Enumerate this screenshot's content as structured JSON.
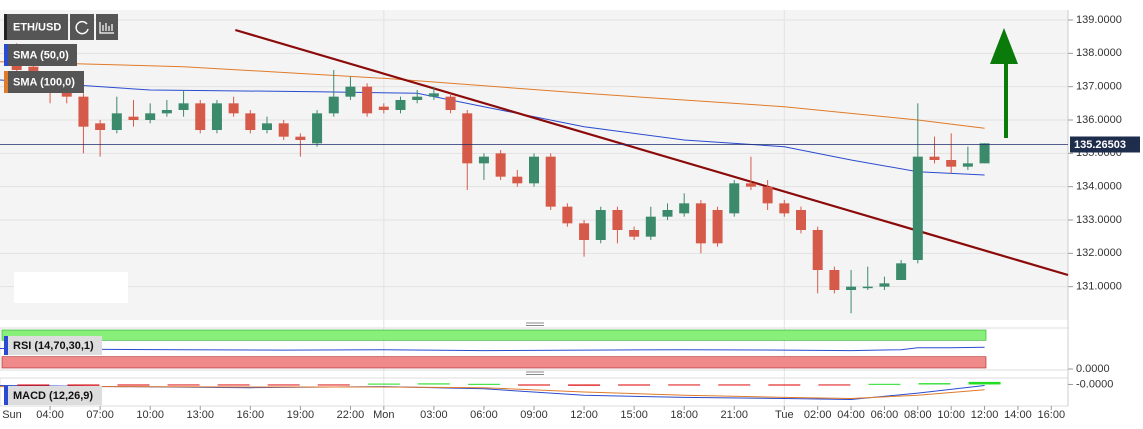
{
  "chart_data": [
    {
      "type": "candlestick",
      "title": "ETH/USD",
      "x": [
        2,
        3,
        4,
        5,
        6,
        7,
        8,
        9,
        10,
        11,
        12,
        13,
        14,
        15,
        16,
        17,
        18,
        19,
        20,
        21,
        22,
        23,
        24,
        25,
        26,
        27,
        28,
        29,
        30,
        31,
        32,
        33,
        34,
        35,
        36,
        37,
        38,
        39,
        40,
        41,
        42,
        43,
        44,
        45,
        46,
        47,
        48,
        49,
        50,
        51,
        52,
        53,
        54,
        55,
        56,
        57,
        58,
        59,
        60
      ],
      "open": [
        137.9,
        137.6,
        137.2,
        137.0,
        136.7,
        135.9,
        135.7,
        136.1,
        136.0,
        136.2,
        136.3,
        136.5,
        135.7,
        136.5,
        136.2,
        135.7,
        135.9,
        135.5,
        135.3,
        136.2,
        136.7,
        137.0,
        136.4,
        136.3,
        136.6,
        136.7,
        136.7,
        136.2,
        134.7,
        135.0,
        134.3,
        134.1,
        134.9,
        133.4,
        132.9,
        132.4,
        133.3,
        132.7,
        132.5,
        133.1,
        133.2,
        133.5,
        133.3,
        133.2,
        134.1,
        134.0,
        133.5,
        133.3,
        132.7,
        131.5,
        130.9,
        131.0,
        131.0,
        131.2,
        131.8,
        134.9,
        134.8,
        134.6,
        134.7
      ],
      "high": [
        138.3,
        137.8,
        137.4,
        137.2,
        136.8,
        136.0,
        136.7,
        136.6,
        136.5,
        136.6,
        136.9,
        136.6,
        136.6,
        136.7,
        136.3,
        136.1,
        136.0,
        135.6,
        136.3,
        137.5,
        137.3,
        137.1,
        136.5,
        136.7,
        136.9,
        137.0,
        136.8,
        136.3,
        135.0,
        135.1,
        134.5,
        135.0,
        135.0,
        133.5,
        133.0,
        133.4,
        133.4,
        132.8,
        133.4,
        133.5,
        133.8,
        133.6,
        133.4,
        134.2,
        134.9,
        134.2,
        133.6,
        133.4,
        132.8,
        131.6,
        131.5,
        131.6,
        131.3,
        131.8,
        136.5,
        135.5,
        135.6,
        135.2,
        135.3
      ],
      "low": [
        137.3,
        137.0,
        136.5,
        136.5,
        135.0,
        134.9,
        135.6,
        135.8,
        135.9,
        136.1,
        136.1,
        135.6,
        135.6,
        136.1,
        135.6,
        135.6,
        135.4,
        134.9,
        135.2,
        136.1,
        136.6,
        136.1,
        136.2,
        136.2,
        136.5,
        136.6,
        136.2,
        133.9,
        134.2,
        134.2,
        134.0,
        134.0,
        133.3,
        132.8,
        131.9,
        132.3,
        132.3,
        132.4,
        132.4,
        133.0,
        133.1,
        132.0,
        132.2,
        133.1,
        133.9,
        133.3,
        133.1,
        132.6,
        130.8,
        130.8,
        130.2,
        130.9,
        130.9,
        131.2,
        131.7,
        134.7,
        134.4,
        134.5,
        134.7
      ],
      "close": [
        137.5,
        137.2,
        136.9,
        136.7,
        135.8,
        135.7,
        136.2,
        136.0,
        136.2,
        136.3,
        136.5,
        135.7,
        136.5,
        136.2,
        135.7,
        135.9,
        135.5,
        135.4,
        136.2,
        136.7,
        137.0,
        136.2,
        136.3,
        136.6,
        136.7,
        136.8,
        136.3,
        134.7,
        134.9,
        134.3,
        134.1,
        134.9,
        133.4,
        132.9,
        132.4,
        133.3,
        132.7,
        132.5,
        133.1,
        133.3,
        133.5,
        132.3,
        132.3,
        134.1,
        134.0,
        133.5,
        133.2,
        132.7,
        131.5,
        130.9,
        131.0,
        131.0,
        131.1,
        131.7,
        134.9,
        134.8,
        134.6,
        134.7,
        135.3
      ],
      "up_color": "#3b8a6c",
      "down_color": "#d65a4a",
      "xlim": [
        1,
        65
      ],
      "ylim": [
        130,
        139.3
      ],
      "yticks": [
        {
          "value": 131,
          "label": "131.0000"
        },
        {
          "value": 132,
          "label": "132.0000"
        },
        {
          "value": 133,
          "label": "133.0000"
        },
        {
          "value": 134,
          "label": "134.0000"
        },
        {
          "value": 135,
          "label": "135.0000"
        },
        {
          "value": 136,
          "label": "136.0000"
        },
        {
          "value": 137,
          "label": "137.0000"
        },
        {
          "value": 138,
          "label": "138.0000"
        },
        {
          "value": 139,
          "label": "139.0000"
        }
      ],
      "xticks": [
        {
          "value": 0,
          "label": "Sun"
        },
        {
          "value": 4,
          "label": "04:00"
        },
        {
          "value": 7,
          "label": "07:00"
        },
        {
          "value": 10,
          "label": "10:00"
        },
        {
          "value": 13,
          "label": "13:00"
        },
        {
          "value": 16,
          "label": "16:00"
        },
        {
          "value": 19,
          "label": "19:00"
        },
        {
          "value": 22,
          "label": "22:00"
        },
        {
          "value": 24,
          "label": "Mon"
        },
        {
          "value": 27,
          "label": "03:00"
        },
        {
          "value": 30,
          "label": "06:00"
        },
        {
          "value": 33,
          "label": "09:00"
        },
        {
          "value": 36,
          "label": "12:00"
        },
        {
          "value": 39,
          "label": "15:00"
        },
        {
          "value": 42,
          "label": "18:00"
        },
        {
          "value": 45,
          "label": "21:00"
        },
        {
          "value": 48,
          "label": "Tue"
        },
        {
          "value": 50,
          "label": "02:00"
        },
        {
          "value": 52,
          "label": "04:00"
        },
        {
          "value": 54,
          "label": "06:00"
        },
        {
          "value": 56,
          "label": "08:00"
        },
        {
          "value": 58,
          "label": "10:00"
        },
        {
          "value": 60,
          "label": "12:00"
        },
        {
          "value": 62,
          "label": "14:00"
        },
        {
          "value": 64,
          "label": "16:00"
        }
      ],
      "grid": true,
      "overlays": [
        {
          "name": "SMA (50,0)",
          "color": "#2a4bd0",
          "x": [
            1,
            10,
            20,
            26,
            30,
            36,
            42,
            48,
            52,
            56,
            60
          ],
          "values": [
            137.2,
            136.9,
            136.85,
            136.8,
            136.4,
            135.8,
            135.4,
            135.2,
            134.8,
            134.45,
            134.35
          ]
        },
        {
          "name": "SMA (100,0)",
          "color": "#e07b2a",
          "x": [
            1,
            12,
            24,
            36,
            48,
            56,
            60
          ],
          "values": [
            137.75,
            137.6,
            137.25,
            136.8,
            136.4,
            136.0,
            135.75
          ]
        }
      ],
      "trendline": {
        "color": "#8b0a0a",
        "x": [
          15.1,
          65
        ],
        "values": [
          138.7,
          131.35
        ]
      },
      "last_price": 135.26503
    },
    {
      "type": "line",
      "title": "RSI (14,70,30,1)",
      "color": "#2a4bd0",
      "x": [
        1,
        6,
        12,
        18,
        24,
        30,
        36,
        42,
        48,
        52,
        55,
        56,
        58,
        60
      ],
      "values": [
        50,
        48,
        47,
        46,
        47,
        45,
        46,
        47,
        46,
        45,
        47,
        52,
        52,
        53
      ],
      "ylim": [
        0,
        100
      ],
      "overbought": 70,
      "oversold": 30,
      "yticks": [
        {
          "value": 0,
          "label": "0.0000"
        }
      ]
    },
    {
      "type": "macd",
      "title": "MACD (12,26,9)",
      "hist_x": [
        3,
        6,
        9,
        12,
        15,
        18,
        21,
        24,
        27,
        30,
        33,
        36,
        39,
        42,
        45,
        48,
        51,
        54,
        57,
        60
      ],
      "histogram": [
        -0.06,
        -0.06,
        -0.05,
        -0.04,
        -0.03,
        -0.02,
        -0.03,
        0.04,
        0.05,
        0.03,
        -0.05,
        -0.06,
        -0.05,
        -0.04,
        -0.03,
        -0.05,
        -0.04,
        0.03,
        0.06,
        0.12
      ],
      "x": [
        1,
        8,
        16,
        24,
        30,
        36,
        42,
        48,
        52,
        56,
        60
      ],
      "macd_line": {
        "color": "#2a4bd0",
        "values": [
          -0.05,
          -0.1,
          -0.15,
          -0.1,
          -0.2,
          -0.5,
          -0.6,
          -0.65,
          -0.7,
          -0.4,
          -0.05
        ]
      },
      "signal_line": {
        "color": "#e07b2a",
        "values": [
          -0.1,
          -0.1,
          -0.12,
          -0.12,
          -0.15,
          -0.35,
          -0.5,
          -0.6,
          -0.65,
          -0.5,
          -0.25
        ]
      },
      "up_color": "#22dd22",
      "down_color": "#e01010",
      "ylim": [
        -1,
        0.3
      ],
      "yticks": [
        {
          "value": 0,
          "label": "-0.0000"
        }
      ]
    }
  ]
}
